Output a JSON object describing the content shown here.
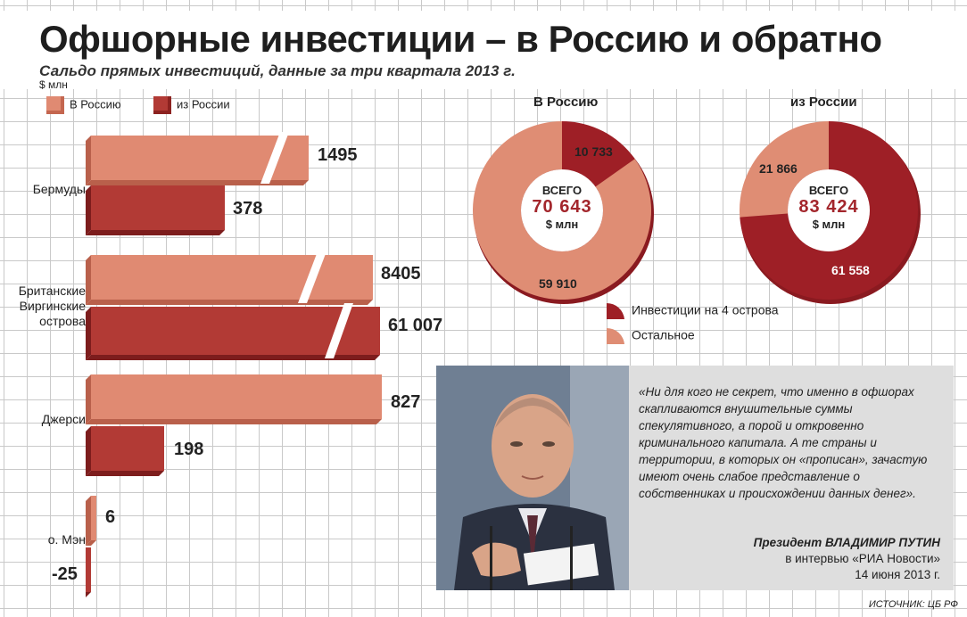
{
  "header": {
    "title": "Офшорные инвестиции – в Россию и обратно",
    "subtitle": "Сальдо прямых инвестиций, данные за три квартала 2013 г.",
    "unit": "$ млн"
  },
  "colors": {
    "to_russia": "#e08a72",
    "from_russia": "#b23a35",
    "dark_red": "#9e1f26",
    "light_salmon": "#df8d74"
  },
  "chart_data": [
    {
      "type": "bar",
      "orientation": "horizontal",
      "unit": "$ млн",
      "categories": [
        "Бермуды",
        "Британские Виргинские острова",
        "Джерси",
        "о. Мэн"
      ],
      "series": [
        {
          "name": "В Россию",
          "values": [
            1495,
            8405,
            827,
            6
          ],
          "labels": [
            "1495",
            "8405",
            "827",
            "6"
          ]
        },
        {
          "name": "из России",
          "values": [
            378,
            61007,
            198,
            -25
          ],
          "labels": [
            "378",
            "61 007",
            "198",
            "-25"
          ]
        }
      ],
      "broken_axis_bars": [
        "Бермуды: В Россию",
        "Британские Виргинские острова: В Россию",
        "Британские Виргинские острова: из России"
      ]
    },
    {
      "type": "pie",
      "title": "В Россию",
      "total_label": "ВСЕГО",
      "total_value": "70 643",
      "total_unit": "$ млн",
      "slices": [
        {
          "name": "Инвестиции на 4 острова",
          "value": 10733,
          "label": "10 733"
        },
        {
          "name": "Остальное",
          "value": 59910,
          "label": "59 910"
        }
      ]
    },
    {
      "type": "pie",
      "title": "из России",
      "total_label": "ВСЕГО",
      "total_value": "83 424",
      "total_unit": "$ млн",
      "slices": [
        {
          "name": "Инвестиции на 4 острова",
          "value": 61558,
          "label": "61 558"
        },
        {
          "name": "Остальное",
          "value": 21866,
          "label": "21 866"
        }
      ]
    }
  ],
  "bar_legend": {
    "to_russia": "В Россию",
    "from_russia": "из России"
  },
  "labels": {
    "bermuda": "Бермуды",
    "bvi_1": "Британские",
    "bvi_2": "Виргинские",
    "bvi_3": "острова",
    "jersey": "Джерси",
    "man": "о. Мэн"
  },
  "values": {
    "bermuda_to": "1495",
    "bermuda_from": "378",
    "bvi_to": "8405",
    "bvi_from": "61 007",
    "jersey_to": "827",
    "jersey_from": "198",
    "man_to": "6",
    "man_from": "-25"
  },
  "donut_legend": {
    "islands": "Инвестиции на 4 острова",
    "other": "Остальное"
  },
  "donut_left": {
    "title": "В Россию",
    "total_label": "ВСЕГО",
    "total": "70 643",
    "unit": "$ млн",
    "islands_label": "10 733",
    "other_label": "59 910"
  },
  "donut_right": {
    "title": "из России",
    "total_label": "ВСЕГО",
    "total": "83 424",
    "unit": "$ млн",
    "islands_label": "61 558",
    "other_label": "21 866"
  },
  "quote": {
    "text": "«Ни для кого не секрет, что именно в офшорах скапливаются внушительные суммы спекулятивного, а порой и откровенно криминального капитала. А те страны и территории, в которых он «прописан», зачастую имеют очень слабое представление о собственниках и происхождении данных денег».",
    "author_prefix": "Президент ",
    "author_name": "ВЛАДИМИР ПУТИН",
    "author_line2": "в интервью «РИА Новости»",
    "author_line3": "14 июня 2013 г."
  },
  "source": "ИСТОЧНИК: ЦБ РФ"
}
